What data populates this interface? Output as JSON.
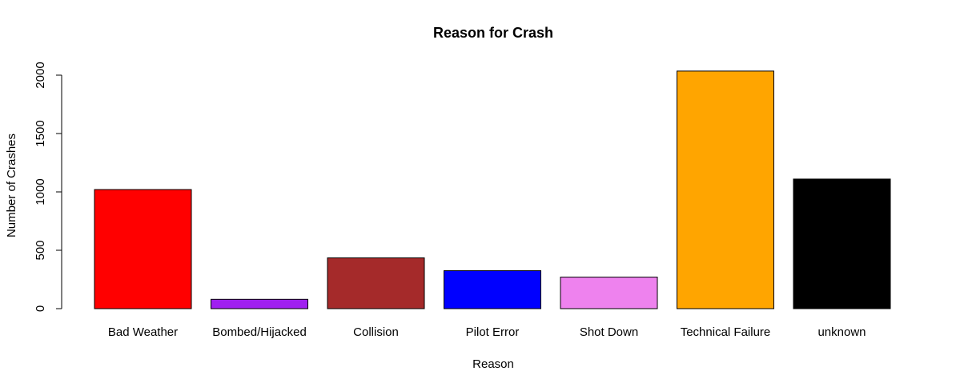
{
  "chart_data": {
    "type": "bar",
    "title": "Reason for Crash",
    "xlabel": "Reason",
    "ylabel": "Number of Crashes",
    "categories": [
      "Bad Weather",
      "Bombed/Hijacked",
      "Collision",
      "Pilot Error",
      "Shot Down",
      "Technical Failure",
      "unknown"
    ],
    "values": [
      1020,
      80,
      435,
      325,
      270,
      2035,
      1110
    ],
    "colors": [
      "#ff0000",
      "#a020f0",
      "#a52a2a",
      "#0000ff",
      "#ee82ee",
      "#ffa500",
      "#000000"
    ],
    "ylim": [
      0,
      2000
    ],
    "yticks": [
      "0",
      "500",
      "1000",
      "1500",
      "2000"
    ],
    "grid": false
  }
}
